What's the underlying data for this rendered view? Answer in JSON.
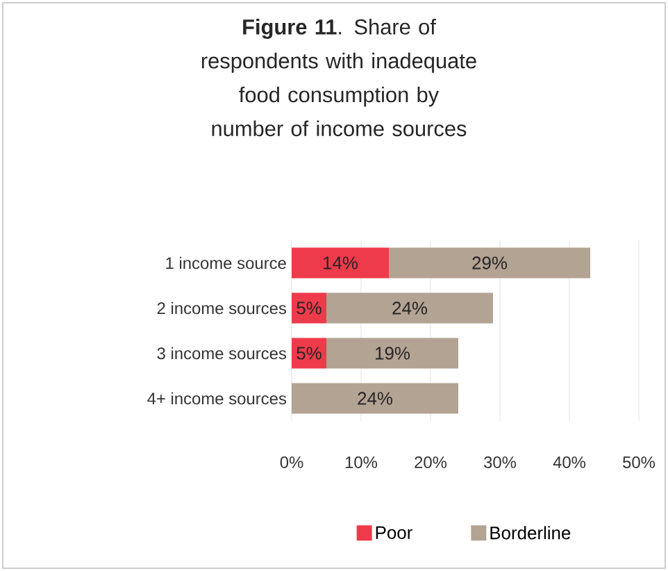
{
  "chart_data": {
    "type": "bar",
    "orientation": "horizontal",
    "stacked": true,
    "title": "**Figure 11**. Share of respondents with inadequate food consumption by number of income sources",
    "categories": [
      "1 income source",
      "2 income sources",
      "3 income sources",
      "4+ income sources"
    ],
    "series": [
      {
        "name": "Poor",
        "color": "#ee3b4b",
        "values": [
          14,
          5,
          5,
          null
        ],
        "value_labels": [
          "14%",
          "5%",
          "5%",
          null
        ]
      },
      {
        "name": "Borderline",
        "color": "#b3a392",
        "values": [
          29,
          24,
          19,
          24
        ],
        "value_labels": [
          "29%",
          "24%",
          "19%",
          "24%"
        ]
      }
    ],
    "xlim": [
      0,
      50
    ],
    "xticks": [
      {
        "value": 0,
        "label": "0%"
      },
      {
        "value": 10,
        "label": "10%"
      },
      {
        "value": 20,
        "label": "20%"
      },
      {
        "value": 30,
        "label": "30%"
      },
      {
        "value": 40,
        "label": "40%"
      },
      {
        "value": 50,
        "label": "50%"
      }
    ],
    "grid": "x",
    "legend": "bottom"
  }
}
